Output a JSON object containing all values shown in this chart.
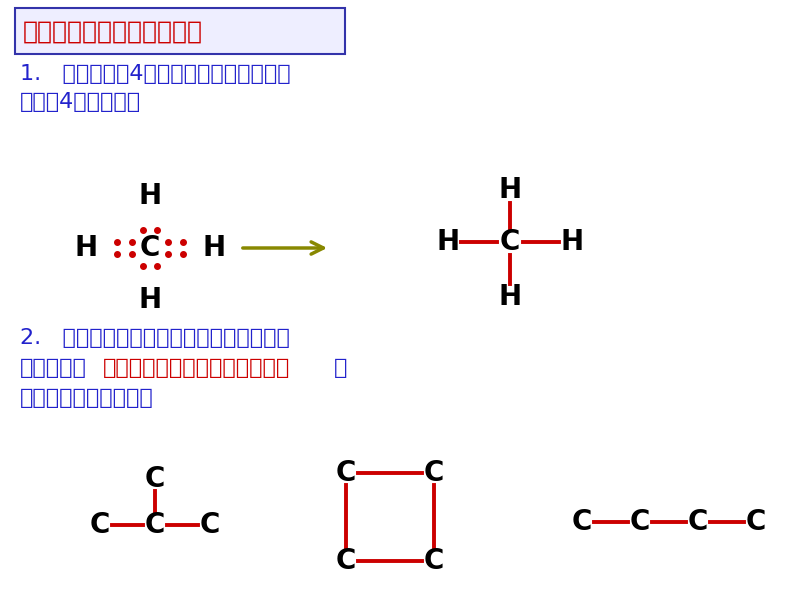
{
  "bg_color": "#ffffff",
  "title_box_text": "有机物中碳原子成键特征：",
  "title_box_color": "#cc0000",
  "title_box_border": "#3333aa",
  "title_box_bg": "#eeeeff",
  "text1_line1": "1.   碳原子含有4个价电子，可以跟其它原",
  "text1_line2": "子形成4个共价键；",
  "text2_line1": "2.   碳原子易跟多种原子形成共价键；碳原",
  "text2_line2a": "子间易形成",
  "text2_line2b": "单键、双键、叁键、碳链、碳环",
  "text2_line2c": "等",
  "text2_line3": "多种复杂的结构单元。",
  "blue_color": "#2222cc",
  "red_color": "#cc0000",
  "bond_color": "#cc0000",
  "atom_color": "#000000",
  "arrow_color": "#888800"
}
